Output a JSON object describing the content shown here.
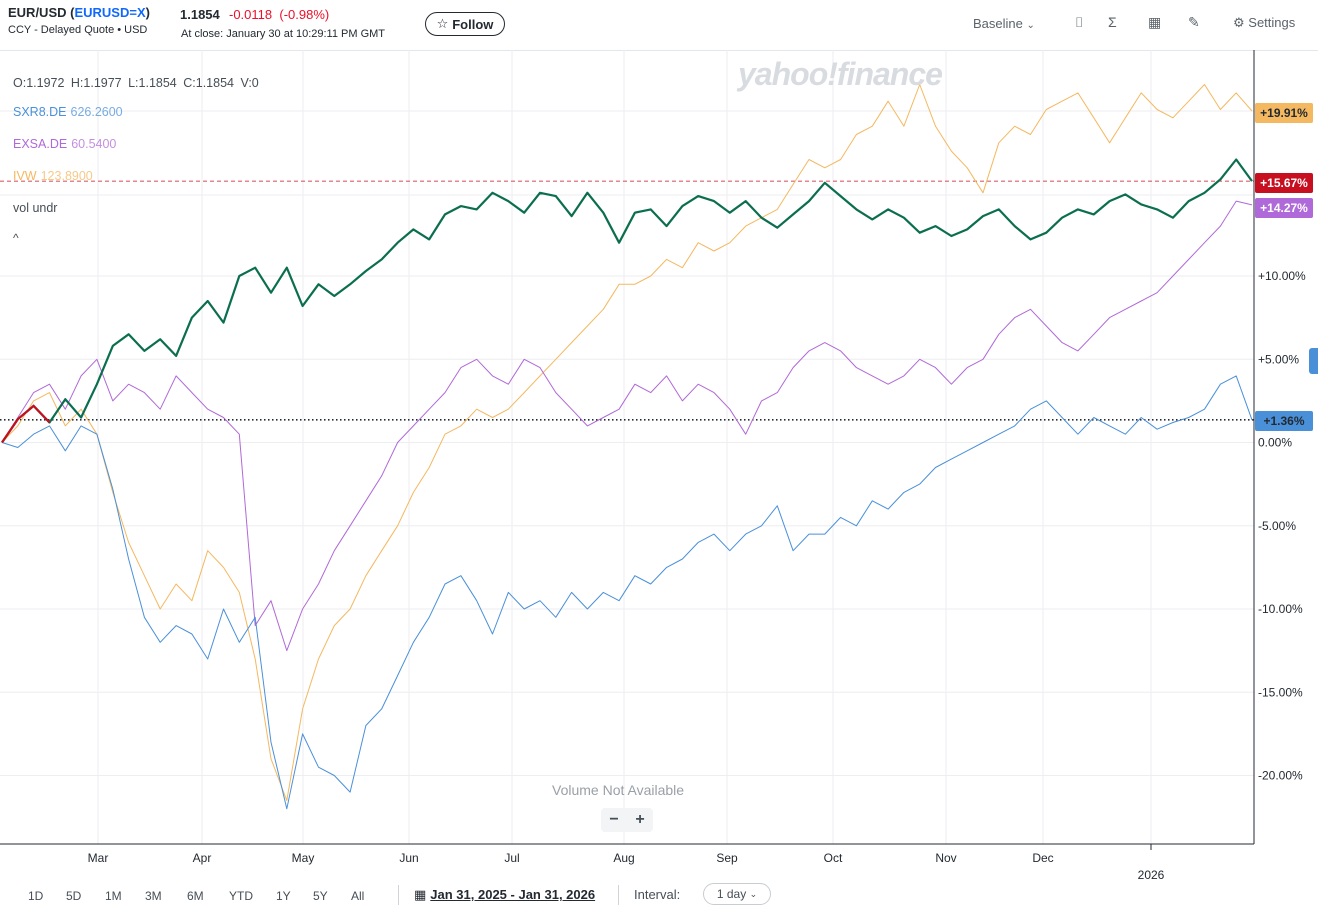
{
  "header": {
    "symbol_name": "EUR/USD",
    "symbol_ticker": "EURUSD=X",
    "subtitle": "CCY - Delayed Quote • USD",
    "price": "1.1854",
    "change": "-0.0118",
    "change_pct": "(-0.98%)",
    "close_time": "At close: January 30 at 10:29:11 PM GMT",
    "follow_label": "Follow",
    "baseline_label": "Baseline",
    "settings_label": "Settings"
  },
  "legend": {
    "ohlc": "O:1.1972  H:1.1977  L:1.1854  C:1.1854  V:0",
    "items": [
      {
        "symbol": "SXR8.DE",
        "value": "626.2600",
        "color": "#4a90d9"
      },
      {
        "symbol": "EXSA.DE",
        "value": "60.5400",
        "color": "#b069d8"
      },
      {
        "symbol": "IVW",
        "value": "123.8900",
        "color": "#f4b860"
      }
    ],
    "vol_label": "vol undr",
    "collapse_icon": "chevron-up-icon"
  },
  "watermark": "yahoo!finance",
  "volume_note": "Volume Not Available",
  "bottom": {
    "ranges": [
      "1D",
      "5D",
      "1M",
      "3M",
      "6M",
      "YTD",
      "1Y",
      "5Y",
      "All"
    ],
    "date_range": "Jan 31, 2025 - Jan 31, 2026",
    "interval_label": "Interval:",
    "interval_value": "1 day"
  },
  "chart_data": {
    "type": "line",
    "baseline": 1.36,
    "x_ticks": [
      "Mar",
      "Apr",
      "May",
      "Jun",
      "Jul",
      "Aug",
      "Sep",
      "Oct",
      "Nov",
      "Dec",
      "2026"
    ],
    "y_ticks": [
      "+10.00%",
      "+5.00%",
      "0.00%",
      "-5.00%",
      "-10.00%",
      "-15.00%",
      "-20.00%"
    ],
    "ylim": [
      -24,
      24
    ],
    "series": [
      {
        "name": "EUR/USD",
        "color": "#0b6e4f",
        "end_label": "+15.67%",
        "end_color": "#c70f1f",
        "values": [
          0,
          1.4,
          2.2,
          1.2,
          2.6,
          1.5,
          3.5,
          5.8,
          6.5,
          5.5,
          6.2,
          5.2,
          7.5,
          8.5,
          7.2,
          10.0,
          10.5,
          9.0,
          10.5,
          8.2,
          9.5,
          8.8,
          9.5,
          10.3,
          11.0,
          12.0,
          12.8,
          12.2,
          13.7,
          14.2,
          14.0,
          15.0,
          14.5,
          13.8,
          15.0,
          14.8,
          13.6,
          15.0,
          13.8,
          12.0,
          13.8,
          14.0,
          13.0,
          14.2,
          14.8,
          14.5,
          13.8,
          14.5,
          13.5,
          12.9,
          13.7,
          14.5,
          15.6,
          14.8,
          14.0,
          13.4,
          14.0,
          13.5,
          12.6,
          13.0,
          12.4,
          12.8,
          13.6,
          14.0,
          13.0,
          12.2,
          12.6,
          13.5,
          14.0,
          13.7,
          14.5,
          14.9,
          14.3,
          14.0,
          13.5,
          14.5,
          15.0,
          15.8,
          17.0,
          15.7
        ]
      },
      {
        "name": "SXR8.DE",
        "color": "#4a90d9",
        "end_label": "+1.36%",
        "values": [
          0,
          -0.3,
          0.5,
          1.0,
          -0.5,
          1.0,
          0.5,
          -2.8,
          -7.0,
          -10.5,
          -12.0,
          -11.0,
          -11.5,
          -13.0,
          -10.0,
          -12.0,
          -10.5,
          -18.0,
          -22.0,
          -17.5,
          -19.5,
          -20.0,
          -21.0,
          -17.0,
          -16.0,
          -14.0,
          -12.0,
          -10.5,
          -8.5,
          -8.0,
          -9.5,
          -11.5,
          -9.0,
          -10.0,
          -9.5,
          -10.5,
          -9.0,
          -10.0,
          -9.0,
          -9.5,
          -8.0,
          -8.5,
          -7.5,
          -7.0,
          -6.0,
          -5.5,
          -6.5,
          -5.5,
          -5.0,
          -3.8,
          -6.5,
          -5.5,
          -5.5,
          -4.5,
          -5.0,
          -3.5,
          -4.0,
          -3.0,
          -2.5,
          -1.5,
          -1.0,
          -0.5,
          0.0,
          0.5,
          1.0,
          2.0,
          2.5,
          1.5,
          0.5,
          1.5,
          1.0,
          0.5,
          1.5,
          0.8,
          1.2,
          1.5,
          2.0,
          3.5,
          4.0,
          1.36
        ]
      },
      {
        "name": "EXSA.DE",
        "color": "#b069d8",
        "end_label": "+14.27%",
        "values": [
          0,
          1.5,
          3.0,
          3.5,
          2.0,
          4.0,
          5.0,
          2.5,
          3.5,
          3.0,
          2.0,
          4.0,
          3.0,
          2.0,
          1.5,
          0.5,
          -11.0,
          -9.5,
          -12.5,
          -10.0,
          -8.5,
          -6.5,
          -5.0,
          -3.5,
          -2.0,
          0.0,
          1.0,
          2.0,
          3.0,
          4.5,
          5.0,
          4.0,
          3.5,
          5.0,
          4.5,
          3.0,
          2.0,
          1.0,
          1.5,
          2.0,
          3.5,
          3.0,
          4.0,
          2.5,
          3.5,
          3.0,
          2.0,
          0.5,
          2.5,
          3.0,
          4.5,
          5.5,
          6.0,
          5.5,
          4.5,
          4.0,
          3.5,
          4.0,
          5.0,
          4.5,
          3.5,
          4.5,
          5.0,
          6.5,
          7.5,
          8.0,
          7.0,
          6.0,
          5.5,
          6.5,
          7.5,
          8.0,
          8.5,
          9.0,
          10.0,
          11.0,
          12.0,
          13.0,
          14.5,
          14.27
        ]
      },
      {
        "name": "IVW",
        "color": "#f4b860",
        "end_label": "+19.91%",
        "end_color": "#f4b860",
        "values": [
          0,
          1.0,
          2.5,
          3.0,
          1.0,
          2.0,
          0.5,
          -3.0,
          -6.0,
          -8.0,
          -10.0,
          -8.5,
          -9.5,
          -6.5,
          -7.5,
          -9.0,
          -13.0,
          -19.0,
          -21.5,
          -16.0,
          -13.0,
          -11.0,
          -10.0,
          -8.0,
          -6.5,
          -5.0,
          -3.0,
          -1.5,
          0.5,
          1.0,
          2.0,
          1.5,
          2.0,
          3.0,
          4.0,
          5.0,
          6.0,
          7.0,
          8.0,
          9.5,
          9.5,
          10.0,
          11.0,
          10.5,
          12.0,
          11.5,
          12.0,
          13.0,
          13.5,
          14.0,
          15.5,
          17.0,
          16.5,
          17.0,
          18.5,
          19.0,
          20.5,
          19.0,
          21.5,
          19.0,
          17.5,
          16.5,
          15.0,
          18.0,
          19.0,
          18.5,
          20.0,
          20.5,
          21.0,
          19.5,
          18.0,
          19.5,
          21.0,
          20.0,
          19.5,
          20.5,
          21.5,
          20.0,
          21.0,
          19.91
        ]
      }
    ]
  }
}
